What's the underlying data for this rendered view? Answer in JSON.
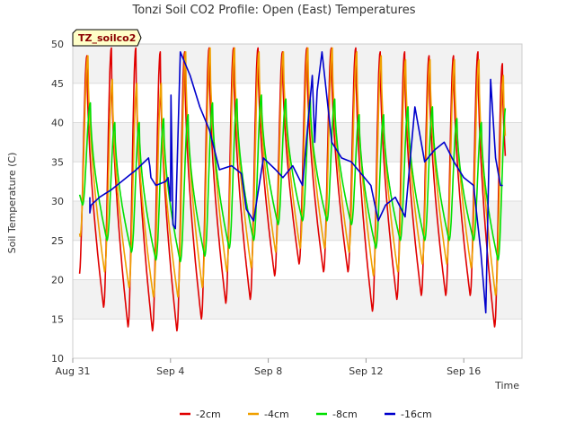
{
  "chart_data": {
    "type": "line",
    "title": "Tonzi Soil CO2 Profile: Open (East) Temperatures",
    "xlabel": "Time",
    "ylabel": "Soil Temperature (C)",
    "tag": "TZ_soilco2",
    "xlim": [
      "Aug 31",
      "Sep 18"
    ],
    "ylim": [
      10,
      50
    ],
    "y_ticks": [
      10,
      15,
      20,
      25,
      30,
      35,
      40,
      45,
      50
    ],
    "x_ticks": [
      {
        "label": "Aug 31",
        "day": 0
      },
      {
        "label": "Sep 4",
        "day": 4
      },
      {
        "label": "Sep 8",
        "day": 8
      },
      {
        "label": "Sep 12",
        "day": 12
      },
      {
        "label": "Sep 16",
        "day": 16
      }
    ],
    "legend_position": "bottom-center",
    "grid": "horizontal bands",
    "series": [
      {
        "name": "-2cm",
        "color": "#e00000",
        "daily_min": [
          20.5,
          16.5,
          14,
          13.5,
          13.5,
          15,
          17,
          17.5,
          20.5,
          22,
          21,
          21,
          16,
          17.5,
          18,
          18,
          18,
          14,
          17
        ],
        "daily_max": [
          48.5,
          49.5,
          49.5,
          49,
          49,
          49.5,
          49.5,
          49.5,
          49,
          49.5,
          49.5,
          49.5,
          49,
          49,
          48.5,
          48.5,
          49,
          47.5
        ],
        "peak_phase": 0.58
      },
      {
        "name": "-4cm",
        "color": "#f0a000",
        "daily_min": [
          25.5,
          21,
          19,
          17.8,
          17.8,
          19,
          21,
          21.5,
          23.5,
          24,
          24,
          23.5,
          20.5,
          21,
          22,
          22,
          21.5,
          18,
          21
        ],
        "daily_max": [
          48.5,
          45.5,
          45,
          45,
          49,
          49.5,
          49.5,
          49,
          49,
          49.5,
          49.5,
          49,
          48.5,
          48,
          48,
          48,
          48,
          46
        ],
        "peak_phase": 0.62
      },
      {
        "name": "-8cm",
        "color": "#00e000",
        "daily_min": [
          29.5,
          25,
          23.5,
          22.5,
          22.3,
          23,
          24,
          25,
          27,
          27.5,
          27.5,
          27,
          24,
          25,
          25,
          25,
          25,
          22.5,
          26
        ],
        "daily_max": [
          42.5,
          40,
          40,
          40.5,
          41,
          42.5,
          43,
          43.5,
          43,
          43,
          43,
          41,
          41,
          42,
          42,
          40.5,
          40,
          42
        ],
        "peak_phase": 0.72
      },
      {
        "name": "-16cm",
        "color": "#0000cc",
        "x": [
          0.7,
          0.7,
          0.75,
          1.1,
          1.6,
          2.2,
          2.6,
          3.1,
          3.15,
          3.2,
          3.4,
          3.8,
          3.9,
          4.0,
          4.02,
          4.1,
          4.2,
          4.4,
          4.8,
          5.2,
          5.6,
          6.0,
          6.5,
          6.9,
          7.1,
          7.4,
          7.8,
          8.3,
          8.6,
          9.0,
          9.4,
          9.6,
          9.8,
          9.9,
          10.0,
          10.2,
          10.6,
          11.0,
          11.4,
          11.8,
          12.2,
          12.5,
          12.8,
          13.2,
          13.6,
          14.0,
          14.4,
          14.8,
          15.2,
          15.6,
          16.0,
          16.4,
          16.7,
          16.9,
          17.1,
          17.3,
          17.5,
          17.6
        ],
        "y": [
          30.5,
          28.5,
          29.5,
          30.5,
          31.5,
          33,
          34,
          35.5,
          34.5,
          33,
          32,
          32.5,
          33,
          30,
          43.5,
          27,
          26.5,
          49,
          46,
          42,
          39,
          34,
          34.5,
          33.5,
          29,
          27.5,
          35.5,
          34,
          33,
          34.5,
          32,
          39,
          46,
          37.5,
          44,
          49,
          37.5,
          35.5,
          35,
          33.5,
          32,
          27.5,
          29.5,
          30.5,
          28,
          42,
          35,
          36.5,
          37.5,
          35,
          33,
          32,
          23.5,
          15.8,
          45.5,
          35.5,
          32,
          32
        ]
      }
    ]
  }
}
